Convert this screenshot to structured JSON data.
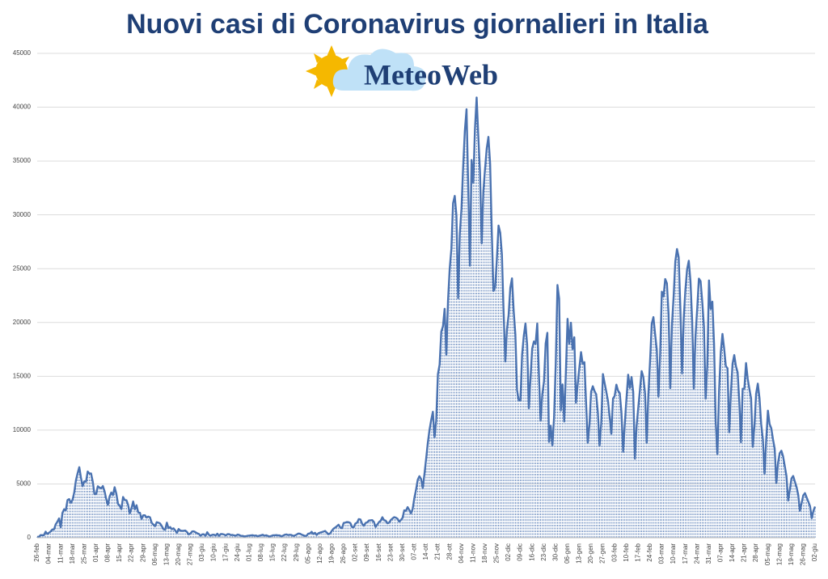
{
  "chart_data": {
    "type": "line",
    "title": "Nuovi casi di Coronavirus giornalieri in Italia",
    "watermark": "MeteoWeb",
    "color": "#4a72b0",
    "ylim": [
      0,
      45000
    ],
    "yticks": [
      0,
      5000,
      10000,
      15000,
      20000,
      25000,
      30000,
      35000,
      40000,
      45000
    ],
    "grid": true,
    "categories": [
      "26-feb",
      null,
      null,
      null,
      null,
      null,
      null,
      "04-mar",
      null,
      null,
      null,
      null,
      null,
      null,
      "11-mar",
      null,
      null,
      null,
      null,
      null,
      null,
      "18-mar",
      null,
      null,
      null,
      null,
      null,
      null,
      "25-mar",
      null,
      null,
      null,
      null,
      null,
      null,
      "01-apr",
      null,
      null,
      null,
      null,
      null,
      null,
      "08-apr",
      null,
      null,
      null,
      null,
      null,
      null,
      "15-apr",
      null,
      null,
      null,
      null,
      null,
      null,
      "22-apr",
      null,
      null,
      null,
      null,
      null,
      null,
      "29-apr",
      null,
      null,
      null,
      null,
      null,
      null,
      "06-mag",
      null,
      null,
      null,
      null,
      null,
      null,
      "13-mag",
      null,
      null,
      null,
      null,
      null,
      null,
      "20-mag",
      null,
      null,
      null,
      null,
      null,
      null,
      "27-mag",
      null,
      null,
      null,
      null,
      null,
      null,
      "03-giu",
      null,
      null,
      null,
      null,
      null,
      null,
      "10-giu",
      null,
      null,
      null,
      null,
      null,
      null,
      "17-giu",
      null,
      null,
      null,
      null,
      null,
      null,
      "24-giu",
      null,
      null,
      null,
      null,
      null,
      null,
      "01-lug",
      null,
      null,
      null,
      null,
      null,
      null,
      "08-lug",
      null,
      null,
      null,
      null,
      null,
      null,
      "15-lug",
      null,
      null,
      null,
      null,
      null,
      null,
      "22-lug",
      null,
      null,
      null,
      null,
      null,
      null,
      "29-lug",
      null,
      null,
      null,
      null,
      null,
      null,
      "05-ago",
      null,
      null,
      null,
      null,
      null,
      null,
      "12-ago",
      null,
      null,
      null,
      null,
      null,
      null,
      "19-ago",
      null,
      null,
      null,
      null,
      null,
      null,
      "26-ago",
      null,
      null,
      null,
      null,
      null,
      null,
      "02-set",
      null,
      null,
      null,
      null,
      null,
      null,
      "09-set",
      null,
      null,
      null,
      null,
      null,
      null,
      "16-set",
      null,
      null,
      null,
      null,
      null,
      null,
      "23-set",
      null,
      null,
      null,
      null,
      null,
      null,
      "30-set",
      null,
      null,
      null,
      null,
      null,
      null,
      "07-ott",
      null,
      null,
      null,
      null,
      null,
      null,
      "14-ott",
      null,
      null,
      null,
      null,
      null,
      null,
      "21-ott",
      null,
      null,
      null,
      null,
      null,
      null,
      "28-ott",
      null,
      null,
      null,
      null,
      null,
      null,
      "04-nov",
      null,
      null,
      null,
      null,
      null,
      null,
      "11-nov",
      null,
      null,
      null,
      null,
      null,
      null,
      "18-nov",
      null,
      null,
      null,
      null,
      null,
      null,
      "25-nov",
      null,
      null,
      null,
      null,
      null,
      null,
      "02-dic",
      null,
      null,
      null,
      null,
      null,
      null,
      "09-dic",
      null,
      null,
      null,
      null,
      null,
      null,
      "16-dic",
      null,
      null,
      null,
      null,
      null,
      null,
      "23-dic",
      null,
      null,
      null,
      null,
      null,
      null,
      "30-dic",
      null,
      null,
      null,
      null,
      null,
      null,
      "06-gen",
      null,
      null,
      null,
      null,
      null,
      null,
      "13-gen",
      null,
      null,
      null,
      null,
      null,
      null,
      "20-gen",
      null,
      null,
      null,
      null,
      null,
      null,
      "27-gen",
      null,
      null,
      null,
      null,
      null,
      null,
      "03-feb",
      null,
      null,
      null,
      null,
      null,
      null,
      "10-feb",
      null,
      null,
      null,
      null,
      null,
      null,
      "17-feb",
      null,
      null,
      null,
      null,
      null,
      null,
      "24-feb",
      null,
      null,
      null,
      null,
      null,
      null,
      "03-mar",
      null,
      null,
      null,
      null,
      null,
      null,
      "10-mar",
      null,
      null,
      null,
      null,
      null,
      null,
      "17-mar",
      null,
      null,
      null,
      null,
      null,
      null,
      "24-mar",
      null,
      null,
      null,
      null,
      null,
      null,
      "31-mar",
      null,
      null,
      null,
      null,
      null,
      null,
      "07-apr",
      null,
      null,
      null,
      null,
      null,
      null,
      "14-apr",
      null,
      null,
      null,
      null,
      null,
      null,
      "21-apr",
      null,
      null,
      null,
      null,
      null,
      null,
      "28-apr",
      null,
      null,
      null,
      null,
      null,
      null,
      "05-mag",
      null,
      null,
      null,
      null,
      null,
      null,
      "12-mag",
      null,
      null,
      null,
      null,
      null,
      null,
      "19-mag",
      null,
      null,
      null,
      null,
      null,
      null,
      "26-mag",
      null,
      null,
      null,
      null,
      null,
      null,
      "02-giu"
    ],
    "values": [
      93,
      78,
      250,
      238,
      240,
      566,
      342,
      466,
      587,
      769,
      778,
      1247,
      1492,
      1797,
      977,
      2313,
      2651,
      2547,
      3497,
      3590,
      3233,
      3526,
      4207,
      5322,
      5986,
      6557,
      5560,
      4789,
      5249,
      5210,
      6153,
      5959,
      5974,
      5217,
      4050,
      4053,
      4782,
      4668,
      4585,
      4805,
      4316,
      3599,
      3039,
      3836,
      4204,
      3951,
      4694,
      4092,
      3153,
      2972,
      2667,
      3786,
      3493,
      3491,
      3047,
      2256,
      2729,
      3370,
      2646,
      3021,
      2357,
      2324,
      1739,
      2091,
      2086,
      1872,
      1965,
      1900,
      1389,
      1221,
      1075,
      1444,
      1401,
      1327,
      1083,
      802,
      744,
      1402,
      888,
      992,
      789,
      875,
      675,
      451,
      813,
      665,
      642,
      652,
      669,
      531,
      300,
      397,
      584,
      593,
      516,
      416,
      355,
      178,
      318,
      321,
      177,
      518,
      270,
      197,
      280,
      283,
      202,
      379,
      163,
      346,
      338,
      301,
      210,
      328,
      331,
      251,
      263,
      224,
      190,
      296,
      259,
      175,
      174,
      126,
      142,
      187,
      201,
      223,
      235,
      192,
      208,
      138,
      193,
      229,
      276,
      188,
      234,
      169,
      114,
      163,
      230,
      233,
      249,
      219,
      218,
      129,
      190,
      280,
      306,
      252,
      275,
      255,
      170,
      212,
      289,
      386,
      379,
      295,
      239,
      159,
      190,
      384,
      402,
      552,
      347,
      463,
      259,
      412,
      481,
      523,
      574,
      629,
      479,
      320,
      403,
      642,
      845,
      947,
      1071,
      1210,
      953,
      878,
      1367,
      1411,
      1462,
      1444,
      1365,
      996,
      978,
      1326,
      1397,
      1733,
      1695,
      1297,
      1108,
      1370,
      1434,
      1597,
      1616,
      1638,
      1458,
      1008,
      1229,
      1452,
      1585,
      1907,
      1638,
      1587,
      1350,
      1392,
      1640,
      1786,
      1912,
      1869,
      1766,
      1494,
      1648,
      1851,
      2548,
      2499,
      2844,
      2578,
      2257,
      2677,
      3678,
      4458,
      5372,
      5724,
      5456,
      4619,
      5901,
      7332,
      8804,
      10010,
      10925,
      11705,
      9338,
      10874,
      15199,
      16079,
      19143,
      19644,
      21273,
      17012,
      21994,
      24991,
      26831,
      31084,
      31758,
      29907,
      22253,
      28244,
      30550,
      34505,
      37809,
      39811,
      32616,
      25271,
      35098,
      32961,
      37978,
      40902,
      37255,
      33979,
      27354,
      32191,
      34283,
      36176,
      37242,
      34767,
      28337,
      22930,
      23232,
      25853,
      29003,
      28352,
      26323,
      21052,
      16377,
      19350,
      20709,
      23225,
      24099,
      21052,
      18887,
      13720,
      12756,
      12757,
      16999,
      18727,
      19903,
      17938,
      12030,
      14844,
      17572,
      18236,
      17992,
      19903,
      15104,
      10872,
      13318,
      14522,
      18040,
      19037,
      8913,
      10407,
      8585,
      11212,
      16202,
      23477,
      22211,
      11831,
      14245,
      10800,
      15378,
      20331,
      18020,
      19978,
      17533,
      18627,
      12532,
      14242,
      15774,
      17246,
      16146,
      16310,
      12545,
      8825,
      10497,
      13571,
      14078,
      13633,
      13331,
      11629,
      8561,
      10593,
      15204,
      14372,
      13574,
      12715,
      11252,
      9660,
      12929,
      13189,
      14218,
      13659,
      13442,
      11641,
      7970,
      10630,
      12956,
      15146,
      13908,
      14931,
      13532,
      7351,
      10386,
      12074,
      13762,
      15479,
      14931,
      13452,
      8824,
      13314,
      16424,
      19886,
      20499,
      18916,
      17455,
      13114,
      17083,
      22865,
      22409,
      24036,
      23641,
      20765,
      13902,
      19749,
      22409,
      25673,
      26824,
      26062,
      21315,
      15267,
      20396,
      23059,
      24935,
      25735,
      23832,
      20159,
      13846,
      18765,
      21267,
      24076,
      23839,
      21932,
      19611,
      12916,
      16017,
      23904,
      21261,
      21932,
      18025,
      10680,
      7767,
      13708,
      17221,
      18938,
      17567,
      15943,
      15746,
      9789,
      13447,
      16168,
      16974,
      15943,
      15370,
      12694,
      8864,
      13844,
      13844,
      16232,
      14761,
      13817,
      12965,
      8444,
      10404,
      13385,
      14320,
      12965,
      10554,
      9148,
      5948,
      9116,
      11807,
      10554,
      10176,
      9148,
      8292,
      5080,
      6946,
      7852,
      8085,
      7567,
      6659,
      5753,
      3455,
      4452,
      5506,
      5741,
      5218,
      4717,
      3995,
      2490,
      3224,
      3937,
      4147,
      3738,
      3351,
      2949,
      1820,
      2483,
      2897
    ]
  }
}
